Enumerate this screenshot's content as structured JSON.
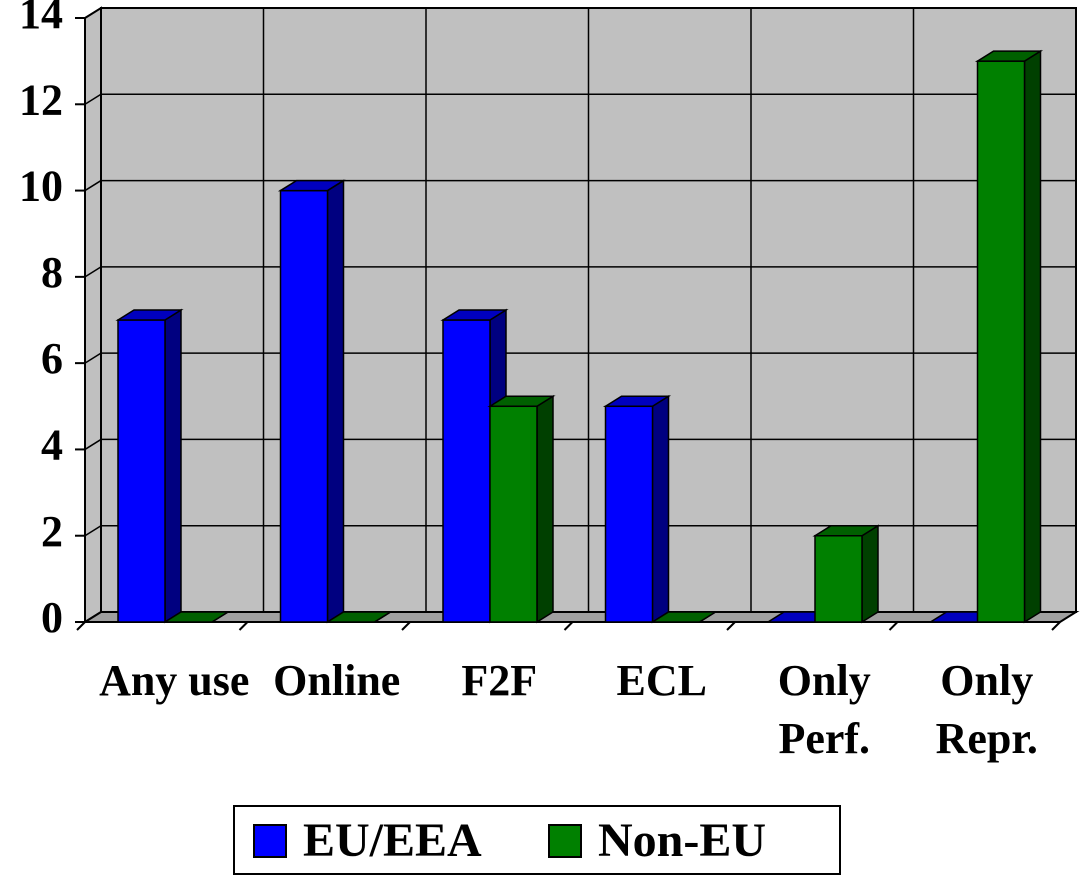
{
  "chart_data": {
    "type": "bar3d",
    "categories": [
      "Any use",
      "Online",
      "F2F",
      "ECL",
      "Only Perf.",
      "Only Repr."
    ],
    "series": [
      {
        "name": "EU/EEA",
        "color": "#0000ff",
        "values": [
          7,
          10,
          7,
          5,
          0,
          0
        ]
      },
      {
        "name": "Non-EU",
        "color": "#008000",
        "values": [
          0,
          0,
          5,
          0,
          2,
          13
        ]
      }
    ],
    "ylim": [
      0,
      14
    ],
    "yticks": [
      0,
      2,
      4,
      6,
      8,
      10,
      12,
      14
    ],
    "grid": true,
    "legend": "bottom"
  }
}
